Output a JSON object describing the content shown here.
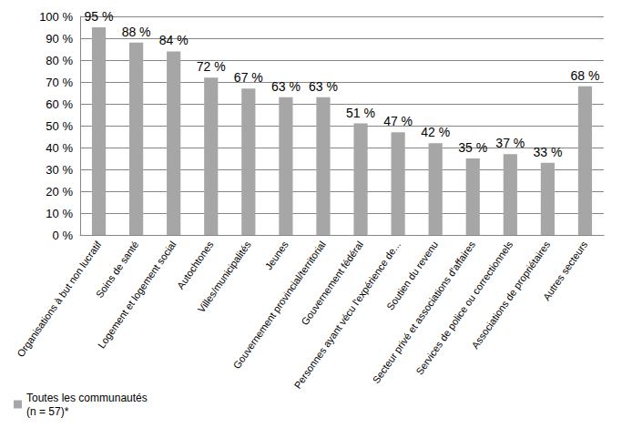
{
  "chart_data": {
    "type": "bar",
    "categories": [
      "Organisations à but non lucratif",
      "Soins de santé",
      "Logement et logement social",
      "Autochtones",
      "Villes/municipalités",
      "Jeunes",
      "Gouvernement provincial/territorial",
      "Gouvernement fédéral",
      "Personnes ayant vécu l'expérience de...",
      "Soutien du revenu",
      "Secteur privé et associations d'affaires",
      "Services de police ou correctionnels",
      "Associations de propriétaires",
      "Autres secteurs"
    ],
    "series": [
      {
        "name": "Toutes les communautés\n(n = 57)*",
        "color": "#a6a6a6",
        "values": [
          95,
          88,
          84,
          72,
          67,
          63,
          63,
          51,
          47,
          42,
          35,
          37,
          33,
          68
        ],
        "value_labels": [
          "95 %",
          "88 %",
          "84 %",
          "72 %",
          "67 %",
          "63 %",
          "63 %",
          "51 %",
          "47 %",
          "42 %",
          "35 %",
          "37 %",
          "33 %",
          "68 %"
        ]
      }
    ],
    "ylim": [
      0,
      100
    ],
    "yticks": [
      {
        "value": 0,
        "label": "0 %"
      },
      {
        "value": 10,
        "label": "10 %"
      },
      {
        "value": 20,
        "label": "20 %"
      },
      {
        "value": 30,
        "label": "30 %"
      },
      {
        "value": 40,
        "label": "40 %"
      },
      {
        "value": 50,
        "label": "50 %"
      },
      {
        "value": 60,
        "label": "60 %"
      },
      {
        "value": 70,
        "label": "70 %"
      },
      {
        "value": 80,
        "label": "80 %"
      },
      {
        "value": 90,
        "label": "90 %"
      },
      {
        "value": 100,
        "label": "100 %"
      }
    ],
    "grid": true,
    "legend": "bottom-left",
    "data_labels": true
  }
}
